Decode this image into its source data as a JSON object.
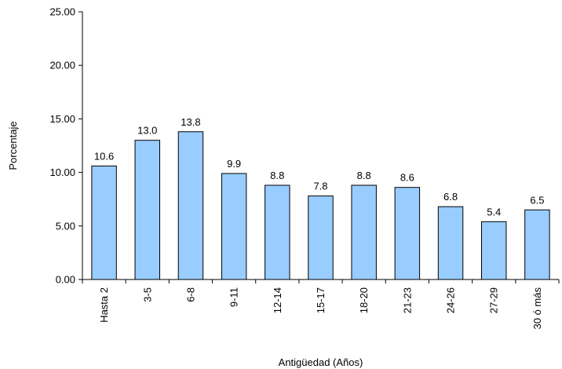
{
  "chart_data": {
    "type": "bar",
    "title": "",
    "xlabel": "Antigüedad (Años)",
    "ylabel": "Porcentaje",
    "ylim": [
      0,
      25
    ],
    "ytick_step": 5,
    "ytick_labels": [
      "0.00",
      "5.00",
      "10.00",
      "15.00",
      "20.00",
      "25.00"
    ],
    "categories": [
      "Hasta 2",
      "3-5",
      "6-8",
      "9-11",
      "12-14",
      "15-17",
      "18-20",
      "21-23",
      "24-26",
      "27-29",
      "30 ó más"
    ],
    "values": [
      10.6,
      13.0,
      13.8,
      9.9,
      8.8,
      7.8,
      8.8,
      8.6,
      6.8,
      5.4,
      6.5
    ],
    "data_labels": [
      "10.6",
      "13.0",
      "13.8",
      "9.9",
      "8.8",
      "7.8",
      "8.8",
      "8.6",
      "6.8",
      "5.4",
      "6.5"
    ],
    "bar_color": "#99CCFF",
    "bar_edge_color": "#000000",
    "grid": false,
    "legend": "none"
  }
}
